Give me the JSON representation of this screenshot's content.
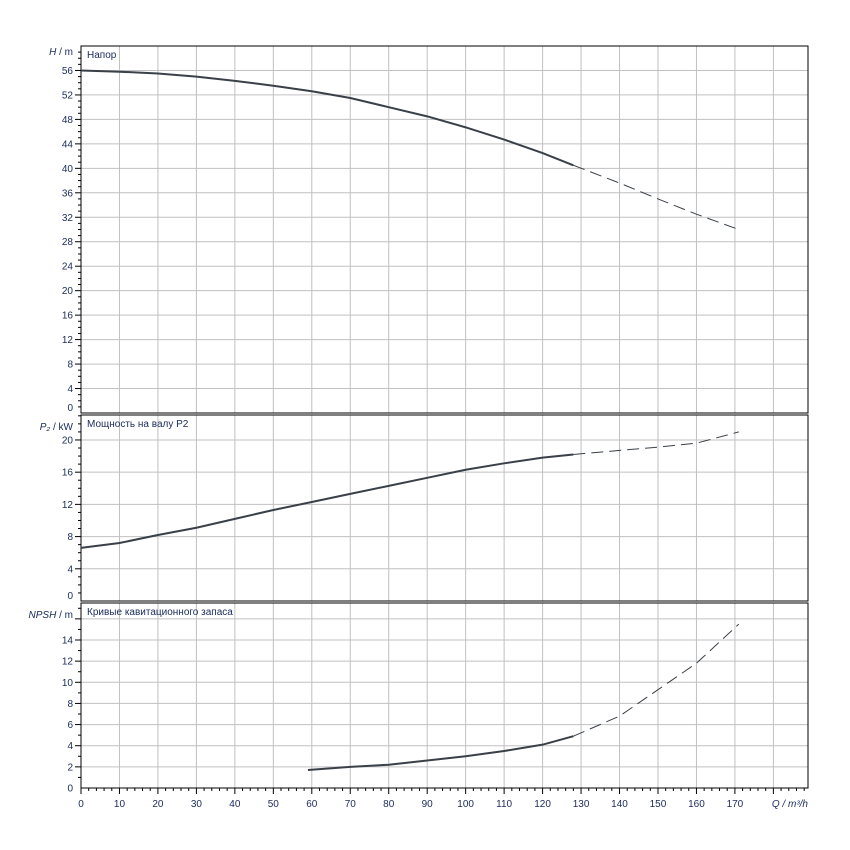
{
  "chart_data": [
    {
      "type": "line",
      "title": "Напор",
      "ylabel_italic": "H",
      "ylabel_unit": " / m",
      "ylim": [
        0,
        60
      ],
      "yticks": [
        0,
        4,
        8,
        12,
        16,
        20,
        24,
        28,
        32,
        36,
        40,
        44,
        48,
        52,
        56
      ],
      "xlim": [
        0,
        189
      ],
      "grid": true,
      "series": [
        {
          "style": "solid",
          "x": [
            0,
            10,
            20,
            30,
            40,
            50,
            60,
            70,
            80,
            90,
            100,
            110,
            120,
            128
          ],
          "y": [
            56,
            55.8,
            55.5,
            55,
            54.3,
            53.5,
            52.6,
            51.5,
            50,
            48.5,
            46.7,
            44.7,
            42.5,
            40.5
          ]
        },
        {
          "style": "dashed",
          "x": [
            128,
            140,
            150,
            160,
            171
          ],
          "y": [
            40.5,
            37.6,
            35,
            32.5,
            30
          ]
        }
      ]
    },
    {
      "type": "line",
      "title": "Мощность на валу P2",
      "ylabel_italic": "P₂",
      "ylabel_unit": " / kW",
      "ylim": [
        0,
        23.1
      ],
      "yticks": [
        0,
        4,
        8,
        12,
        16,
        20
      ],
      "xlim": [
        0,
        189
      ],
      "grid": true,
      "series": [
        {
          "style": "solid",
          "x": [
            0,
            10,
            20,
            30,
            40,
            50,
            60,
            70,
            80,
            90,
            100,
            110,
            120,
            128
          ],
          "y": [
            6.6,
            7.2,
            8.2,
            9.1,
            10.2,
            11.3,
            12.3,
            13.3,
            14.3,
            15.3,
            16.3,
            17.1,
            17.8,
            18.2
          ]
        },
        {
          "style": "dashed",
          "x": [
            128,
            140,
            150,
            160,
            171
          ],
          "y": [
            18.2,
            18.7,
            19.1,
            19.6,
            21
          ]
        }
      ]
    },
    {
      "type": "line",
      "title": "Кривые кавитационного запаса",
      "ylabel_italic": "NPSH",
      "ylabel_unit": " / m",
      "ylim": [
        0,
        17.5
      ],
      "yticks": [
        0,
        2,
        4,
        6,
        8,
        10,
        12,
        14
      ],
      "xlim": [
        0,
        189
      ],
      "xticks": [
        0,
        10,
        20,
        30,
        40,
        50,
        60,
        70,
        80,
        90,
        100,
        110,
        120,
        130,
        140,
        150,
        160,
        170
      ],
      "xlabel": "Q / m³/h",
      "grid": true,
      "series": [
        {
          "style": "solid",
          "x": [
            59,
            70,
            80,
            90,
            100,
            110,
            120,
            128
          ],
          "y": [
            1.7,
            2.0,
            2.2,
            2.6,
            3.0,
            3.5,
            4.1,
            4.9
          ]
        },
        {
          "style": "dashed",
          "x": [
            128,
            140,
            150,
            160,
            171
          ],
          "y": [
            4.9,
            6.8,
            9.3,
            11.8,
            15.5
          ]
        }
      ]
    }
  ],
  "colors": {
    "curve": "#3a4048",
    "grid": "#c0c0c0",
    "tick_label": "#1a2a5a"
  }
}
